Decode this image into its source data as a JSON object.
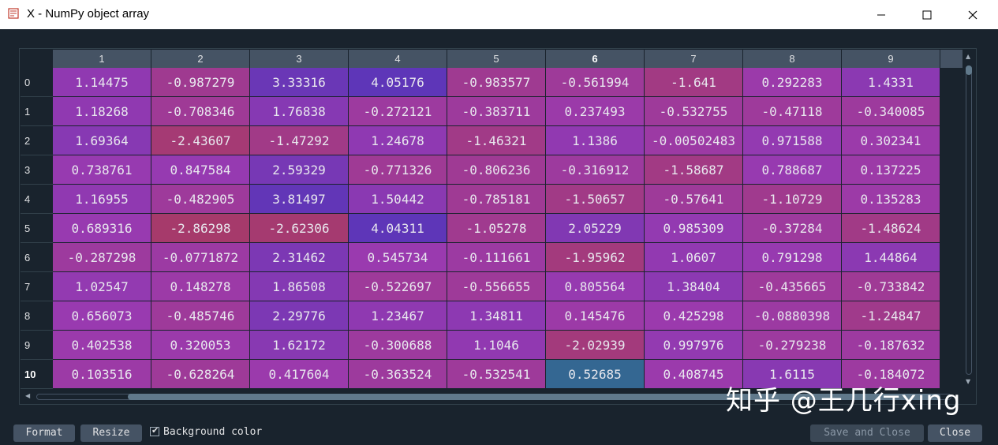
{
  "window": {
    "title": "X - NumPy object array"
  },
  "table": {
    "columns": [
      "1",
      "2",
      "3",
      "4",
      "5",
      "6",
      "7",
      "8",
      "9"
    ],
    "selected_column": 5,
    "rows": [
      "0",
      "1",
      "2",
      "3",
      "4",
      "5",
      "6",
      "7",
      "8",
      "9",
      "10"
    ],
    "selected_row": 10,
    "values": [
      [
        "1.14475",
        "-0.987279",
        "3.33316",
        "4.05176",
        "-0.983577",
        "-0.561994",
        "-1.641",
        "0.292283",
        "1.4331"
      ],
      [
        "1.18268",
        "-0.708346",
        "1.76838",
        "-0.272121",
        "-0.383711",
        "0.237493",
        "-0.532755",
        "-0.47118",
        "-0.340085"
      ],
      [
        "1.69364",
        "-2.43607",
        "-1.47292",
        "1.24678",
        "-1.46321",
        "1.1386",
        "-0.00502483",
        "0.971588",
        "0.302341"
      ],
      [
        "0.738761",
        "0.847584",
        "2.59329",
        "-0.771326",
        "-0.806236",
        "-0.316912",
        "-1.58687",
        "0.788687",
        "0.137225"
      ],
      [
        "1.16955",
        "-0.482905",
        "3.81497",
        "1.50442",
        "-0.785181",
        "-1.50657",
        "-0.57641",
        "-1.10729",
        "0.135283"
      ],
      [
        "0.689316",
        "-2.86298",
        "-2.62306",
        "4.04311",
        "-1.05278",
        "2.05229",
        "0.985309",
        "-0.37284",
        "-1.48624"
      ],
      [
        "-0.287298",
        "-0.0771872",
        "2.31462",
        "0.545734",
        "-0.111661",
        "-1.95962",
        "1.0607",
        "0.791298",
        "1.44864"
      ],
      [
        "1.02547",
        "0.148278",
        "1.86508",
        "-0.522697",
        "-0.556655",
        "0.805564",
        "1.38404",
        "-0.435665",
        "-0.733842"
      ],
      [
        "0.656073",
        "-0.485746",
        "2.29776",
        "1.23467",
        "1.34811",
        "0.145476",
        "0.425298",
        "-0.0880398",
        "-1.24847"
      ],
      [
        "0.402538",
        "0.320053",
        "1.62172",
        "-0.300688",
        "1.1046",
        "-2.02939",
        "0.997976",
        "-0.279238",
        "-0.187632"
      ],
      [
        "0.103516",
        "-0.628264",
        "0.417604",
        "-0.363524",
        "-0.532541",
        "0.52685",
        "0.408745",
        "1.6115",
        "-0.184072"
      ]
    ],
    "color_range": [
      -2.86298,
      4.05176
    ],
    "colors": {
      "low": "#a63a6b",
      "mid": "#9a3ab0",
      "high": "#5e36b8",
      "selected": "#346792"
    }
  },
  "buttons": {
    "format": "Format",
    "resize": "Resize",
    "background_color_label": "Background color",
    "background_color_checked": true,
    "save_and_close": "Save and Close",
    "close": "Close"
  },
  "watermark": "知乎 @王几行xing"
}
